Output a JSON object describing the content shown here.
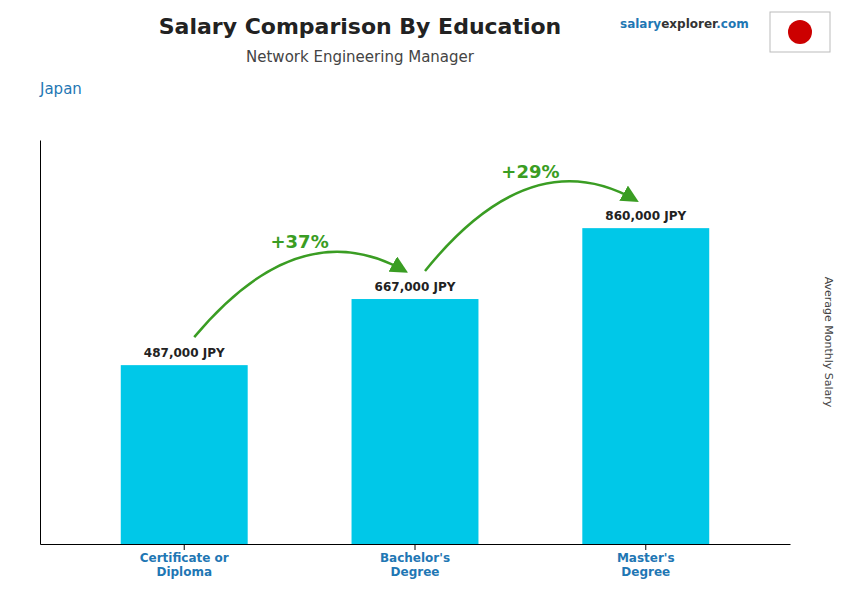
{
  "chart_data": {
    "type": "bar",
    "title": "Salary Comparison By Education",
    "subtitle": "Network Engineering Manager",
    "country": "Japan",
    "watermark": [
      "salary",
      "explorer",
      ".com"
    ],
    "ylabel": "Average Monthly Salary",
    "categories": [
      "Certificate or\nDiploma",
      "Bachelor's\nDegree",
      "Master's\nDegree"
    ],
    "values": [
      487000,
      667000,
      860000
    ],
    "value_labels": [
      "487,000 JPY",
      "667,000 JPY",
      "860,000 JPY"
    ],
    "data_labels": true,
    "annotations": [
      "+37%",
      "+29%"
    ],
    "color": "#00c8e8",
    "ylim": [
      0,
      1100000
    ],
    "tick_labels": "x",
    "grid": false
  }
}
